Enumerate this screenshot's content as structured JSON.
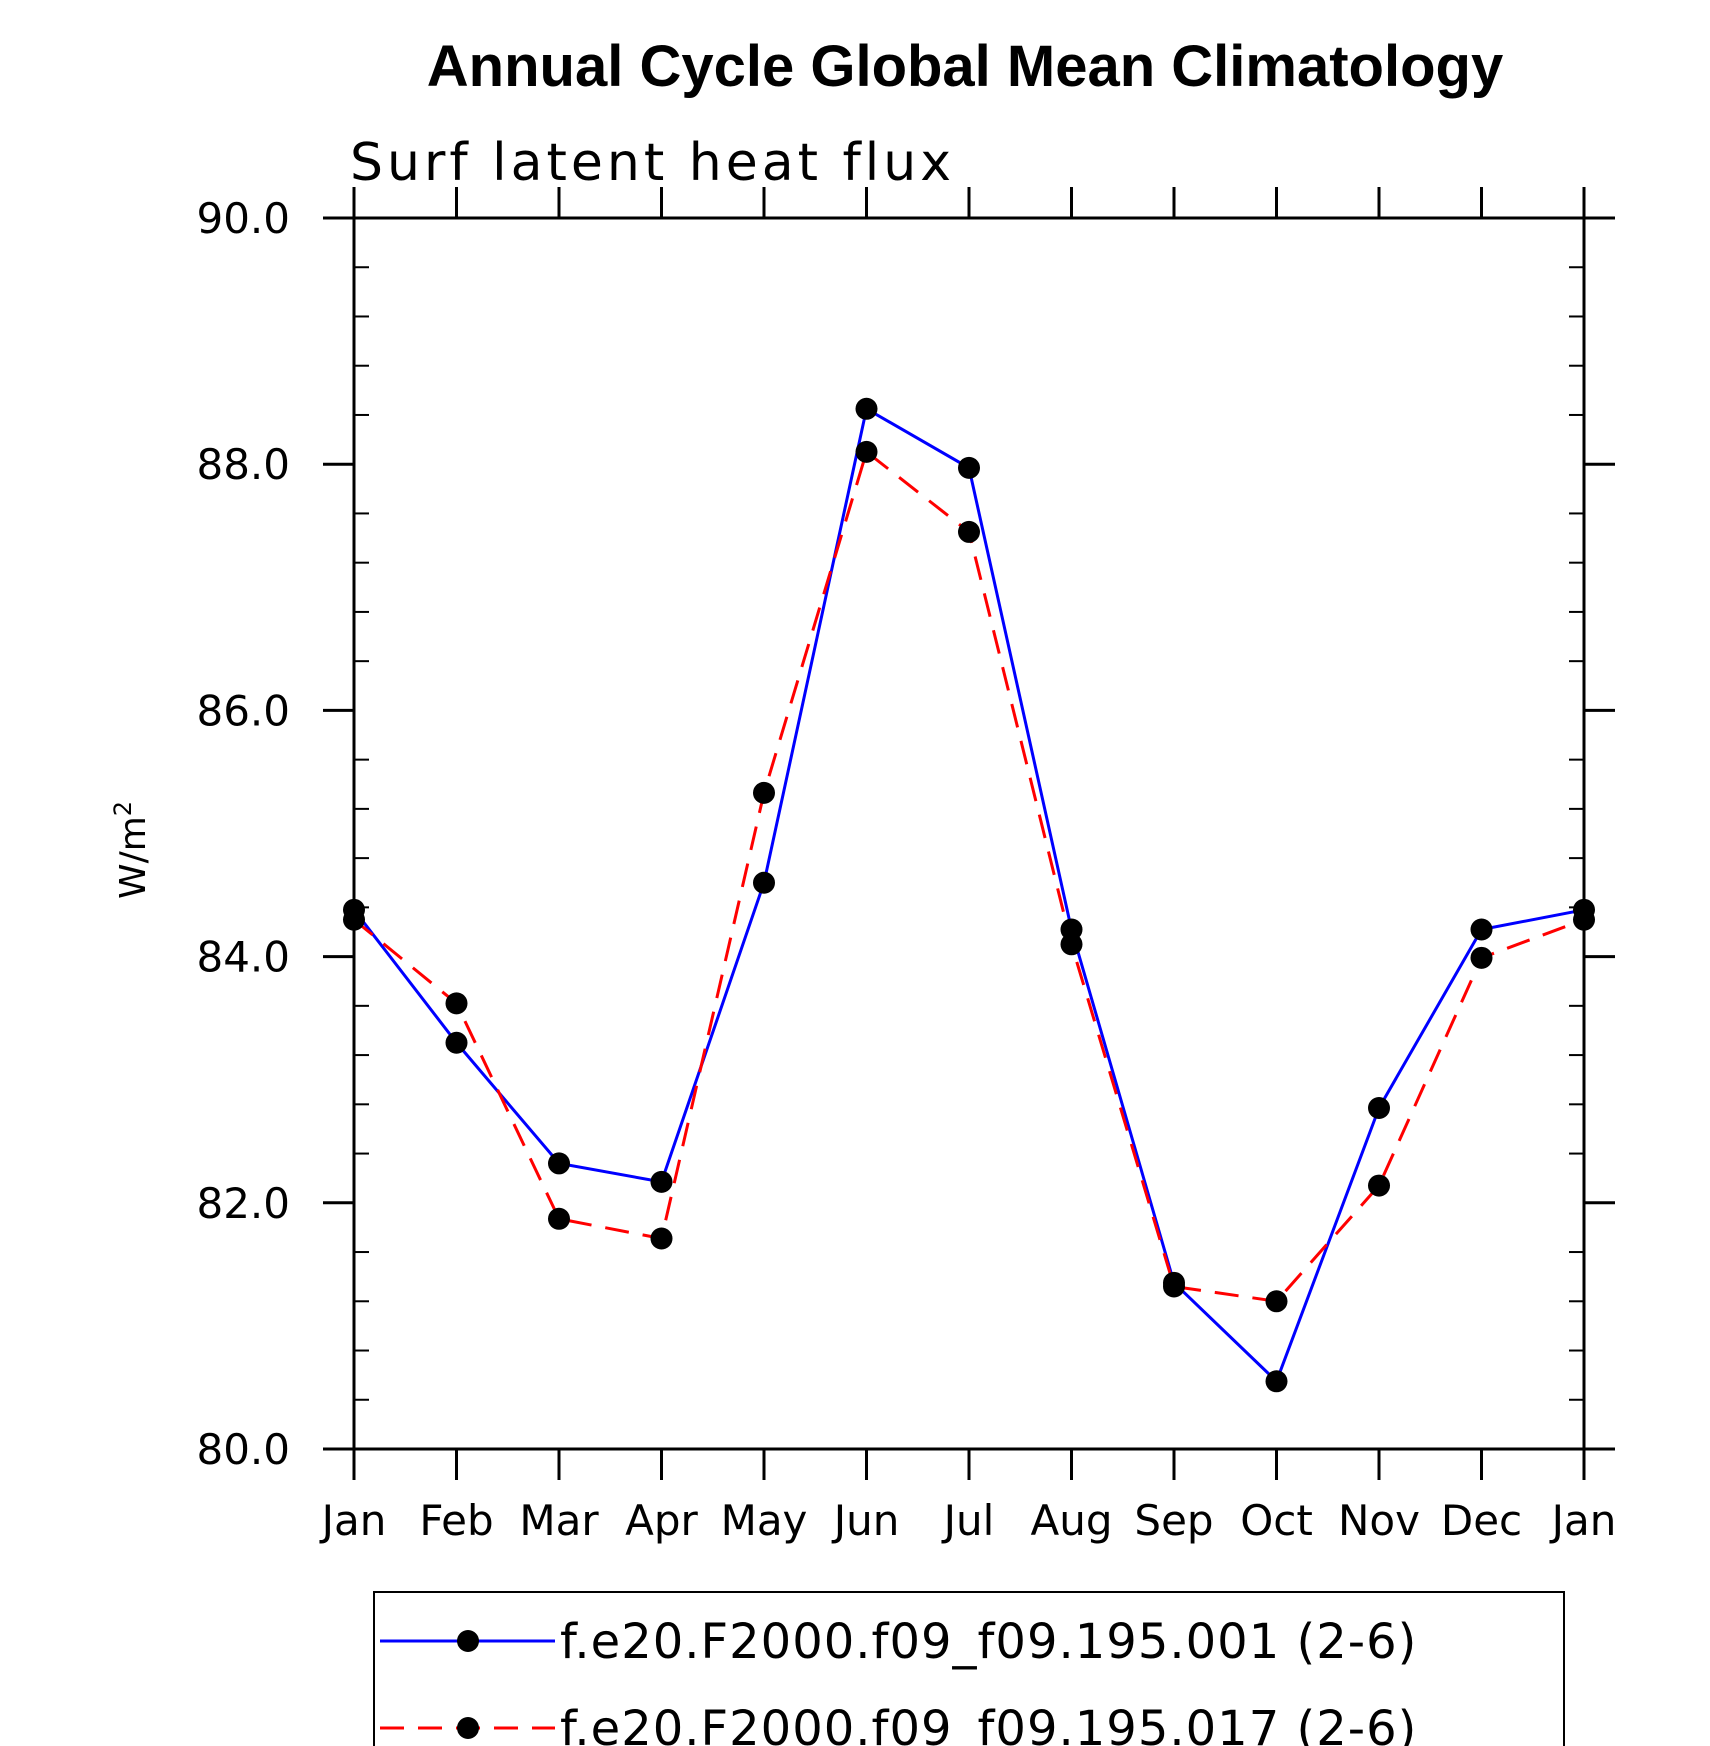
{
  "chart_data": {
    "type": "line",
    "title": "Annual Cycle Global Mean Climatology",
    "subtitle": "Surf latent heat flux",
    "ylabel": "W/m",
    "ylabel_sup": "2",
    "xlabel": "",
    "categories": [
      "Jan",
      "Feb",
      "Mar",
      "Apr",
      "May",
      "Jun",
      "Jul",
      "Aug",
      "Sep",
      "Oct",
      "Nov",
      "Dec",
      "Jan"
    ],
    "ylim": [
      80.0,
      90.0
    ],
    "yticks": [
      "80.0",
      "82.0",
      "84.0",
      "86.0",
      "88.0",
      "90.0"
    ],
    "grid": false,
    "legend_position": "bottom",
    "series": [
      {
        "name": "f.e20.F2000.f09_f09.195.001 (2-6)",
        "color": "#0000ff",
        "dash": "solid",
        "marker": "circle",
        "values": [
          84.38,
          83.3,
          82.32,
          82.17,
          84.6,
          88.45,
          87.97,
          84.22,
          81.35,
          80.55,
          82.77,
          84.22,
          84.38
        ]
      },
      {
        "name": "f.e20.F2000.f09_f09.195.017 (2-6)",
        "color": "#ff0000",
        "dash": "dashed",
        "marker": "circle",
        "values": [
          84.3,
          83.62,
          81.87,
          81.71,
          85.33,
          88.1,
          87.45,
          84.1,
          81.32,
          81.2,
          82.14,
          83.99,
          84.3
        ]
      }
    ]
  }
}
